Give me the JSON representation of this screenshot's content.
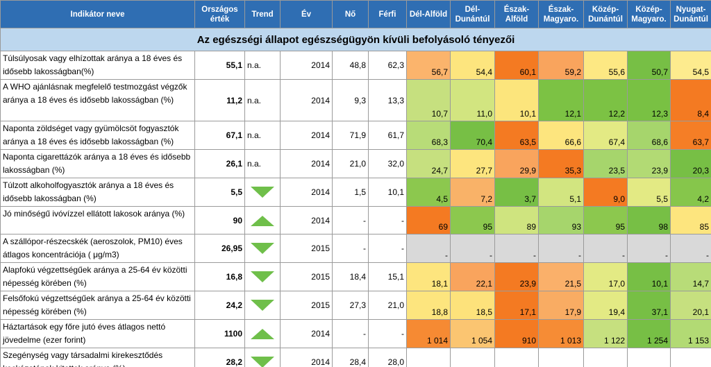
{
  "header": [
    "Indikátor neve",
    "Országos érték",
    "Trend",
    "Év",
    "Nő",
    "Férfi",
    "Dél-Alföld",
    "Dél-Dunántúl",
    "Észak-Alföld",
    "Észak-Magyaro.",
    "Közép-Dunántúl",
    "Közép-Magyaro.",
    "Nyugat-Dunántúl"
  ],
  "section_title": "Az egészségi állapot egészségügyön kívüli befolyásoló tényezői",
  "rows": [
    {
      "name": "Túlsúlyosak vagy elhízottak aránya a 18 éves és idősebb lakosságban(%)",
      "national": "55,1",
      "trend": "n.a.",
      "year": "2014",
      "female": "48,8",
      "male": "62,3",
      "regions": [
        "56,7",
        "54,4",
        "60,1",
        "59,2",
        "55,6",
        "50,7",
        "54,5"
      ],
      "colors": [
        "#fbb46c",
        "#fde57e",
        "#f47a22",
        "#f9a45d",
        "#fde883",
        "#77bf45",
        "#fdeb8e"
      ]
    },
    {
      "name": "A WHO ajánlásnak megfelelő testmozgást végzők aránya a 18 éves és idősebb lakosságban (%)",
      "national": "11,2",
      "trend": "n.a.",
      "year": "2014",
      "female": "9,3",
      "male": "13,3",
      "regions": [
        "10,7",
        "11,0",
        "10,1",
        "12,1",
        "12,2",
        "12,3",
        "8,4"
      ],
      "colors": [
        "#c6e07f",
        "#d2e580",
        "#fce57c",
        "#7cc244",
        "#7cc244",
        "#79c143",
        "#f47a22"
      ]
    },
    {
      "name": "Naponta zöldséget vagy gyümölcsöt fogyasztók aránya a 18 éves és idősebb lakosságban (%)",
      "national": "67,1",
      "trend": "n.a.",
      "year": "2014",
      "female": "71,9",
      "male": "61,7",
      "regions": [
        "68,3",
        "70,4",
        "63,5",
        "66,6",
        "67,4",
        "68,6",
        "63,7"
      ],
      "colors": [
        "#b8dc78",
        "#77bf45",
        "#f47a22",
        "#fde57e",
        "#e3ea84",
        "#a6d56c",
        "#f57e26"
      ]
    },
    {
      "name": "Naponta cigarettázók aránya a 18 éves és idősebb lakosságban (%)",
      "national": "26,1",
      "trend": "n.a.",
      "year": "2014",
      "female": "21,0",
      "male": "32,0",
      "regions": [
        "24,7",
        "27,7",
        "29,9",
        "35,3",
        "23,5",
        "23,9",
        "20,3"
      ],
      "colors": [
        "#c6e07f",
        "#fde57e",
        "#f9a45d",
        "#f47a22",
        "#a6d56c",
        "#b2da74",
        "#77bf45"
      ]
    },
    {
      "name": "Túlzott alkoholfogyasztók aránya a 18 éves és idősebb lakosságban (%)",
      "national": "5,5",
      "trend_icon": "down",
      "year": "2014",
      "female": "1,5",
      "male": "10,1",
      "regions": [
        "4,5",
        "7,2",
        "3,7",
        "5,1",
        "9,0",
        "5,5",
        "4,2"
      ],
      "colors": [
        "#8cc84e",
        "#f9b268",
        "#77bf45",
        "#d2e580",
        "#f47a22",
        "#e3ea84",
        "#86c64b"
      ]
    },
    {
      "name": "Jó minőségű ivóvízzel ellátott lakosok aránya (%)",
      "national": "90",
      "trend_icon": "up",
      "year": "2014",
      "female": "-",
      "male": "-",
      "regions": [
        "69",
        "95",
        "89",
        "93",
        "95",
        "98",
        "85"
      ],
      "colors": [
        "#f47a22",
        "#8cc84e",
        "#cfe47f",
        "#a6d56c",
        "#8cc84e",
        "#77bf45",
        "#fde57e"
      ]
    },
    {
      "name": "A szállópor-részecskék (aeroszolok, PM10) éves átlagos koncentrációja  ( μg/m3)",
      "national": "26,95",
      "trend_icon": "down",
      "year": "2015",
      "female": "-",
      "male": "-",
      "regions": [
        "-",
        "-",
        "-",
        "-",
        "-",
        "-",
        "-"
      ],
      "colors": [
        "#d9d9d9",
        "#d9d9d9",
        "#d9d9d9",
        "#d9d9d9",
        "#d9d9d9",
        "#d9d9d9",
        "#d9d9d9"
      ]
    },
    {
      "name": "Alapfokú végzettségűek aránya a 25-64 év közötti népesség  körében (%)",
      "national": "16,8",
      "trend_icon": "down",
      "year": "2015",
      "female": "18,4",
      "male": "15,1",
      "regions": [
        "18,1",
        "22,1",
        "23,9",
        "21,5",
        "17,0",
        "10,1",
        "14,7"
      ],
      "colors": [
        "#fde57e",
        "#f9a45d",
        "#f47a22",
        "#fab06a",
        "#e3ea84",
        "#77bf45",
        "#b8dc78"
      ]
    },
    {
      "name": "Felsőfokú végzettségűek aránya a 25-64 év közötti népesség  körében (%)",
      "national": "24,2",
      "trend_icon": "down",
      "year": "2015",
      "female": "27,3",
      "male": "21,0",
      "regions": [
        "18,8",
        "18,5",
        "17,1",
        "17,9",
        "19,4",
        "37,1",
        "20,1"
      ],
      "colors": [
        "#fde57e",
        "#fde27b",
        "#f47a22",
        "#f9ac63",
        "#e3ea84",
        "#77bf45",
        "#c6e07f"
      ]
    },
    {
      "name": "Háztartások egy főre jutó éves átlagos nettó jövedelme (ezer forint)",
      "national": "1100",
      "trend_icon": "up",
      "year": "2014",
      "female": "-",
      "male": "-",
      "regions": [
        "1 014",
        "1 054",
        "910",
        "1 013",
        "1 122",
        "1 254",
        "1 153"
      ],
      "colors": [
        "#f68a33",
        "#fbc571",
        "#f47a22",
        "#f68c35",
        "#c6e07f",
        "#77bf45",
        "#b2da74"
      ]
    },
    {
      "name": "Szegénység vagy társadalmi kirekesztődés kockázatának kitettek aránya (%)",
      "national": "28,2",
      "trend_icon": "down",
      "year": "2014",
      "female": "28,4",
      "male": "28,0",
      "regions": [
        "-",
        "-",
        "-",
        "-",
        "-",
        "-",
        "-"
      ],
      "colors": [
        "#ffffff",
        "#ffffff",
        "#ffffff",
        "#ffffff",
        "#ffffff",
        "#ffffff",
        "#ffffff"
      ]
    }
  ]
}
